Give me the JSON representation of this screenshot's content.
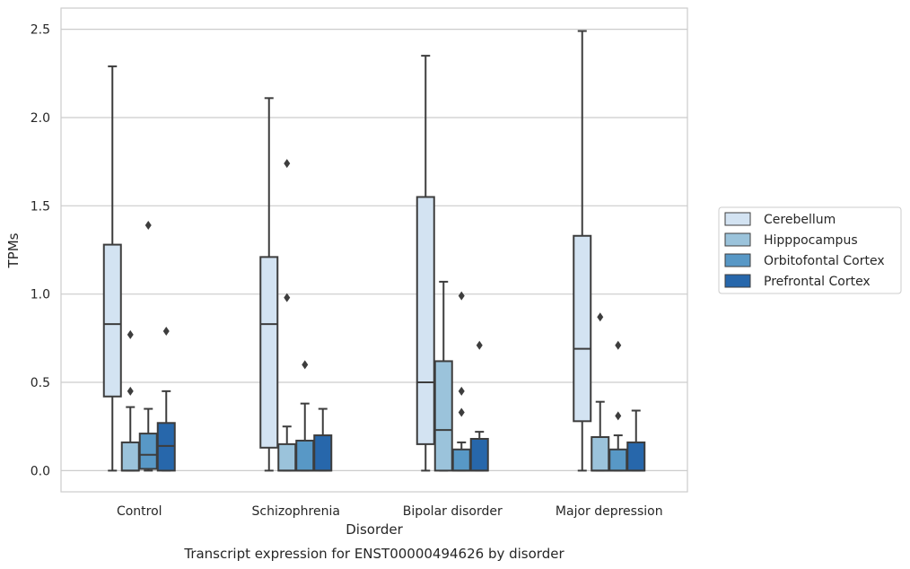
{
  "chart_data": {
    "type": "box",
    "caption": "Transcript expression for ENST00000494626 by disorder",
    "xlabel": "Disorder",
    "ylabel": "TPMs",
    "ylim": [
      -0.12,
      2.62
    ],
    "yticks": [
      0.0,
      0.5,
      1.0,
      1.5,
      2.0,
      2.5
    ],
    "ytick_labels": [
      "0.0",
      "0.5",
      "1.0",
      "1.5",
      "2.0",
      "2.5"
    ],
    "grid": "horizontal",
    "legend_position": "right",
    "categories": [
      "Control",
      "Schizophrenia",
      "Bipolar disorder",
      "Major depression"
    ],
    "series": [
      {
        "name": "Cerebellum",
        "color": "#d3e3f2",
        "boxes": [
          {
            "whisker_low": 0.0,
            "q1": 0.42,
            "median": 0.83,
            "q3": 1.28,
            "whisker_high": 2.29,
            "outliers": []
          },
          {
            "whisker_low": 0.0,
            "q1": 0.13,
            "median": 0.83,
            "q3": 1.21,
            "whisker_high": 2.11,
            "outliers": []
          },
          {
            "whisker_low": 0.0,
            "q1": 0.15,
            "median": 0.5,
            "q3": 1.55,
            "whisker_high": 2.35,
            "outliers": []
          },
          {
            "whisker_low": 0.0,
            "q1": 0.28,
            "median": 0.69,
            "q3": 1.33,
            "whisker_high": 2.49,
            "outliers": []
          }
        ]
      },
      {
        "name": "Hipppocampus",
        "color": "#9bc3db",
        "boxes": [
          {
            "whisker_low": 0.0,
            "q1": 0.0,
            "median": 0.0,
            "q3": 0.16,
            "whisker_high": 0.36,
            "outliers": [
              0.45,
              0.77
            ]
          },
          {
            "whisker_low": 0.0,
            "q1": 0.0,
            "median": 0.0,
            "q3": 0.15,
            "whisker_high": 0.25,
            "outliers": [
              0.98,
              1.74
            ]
          },
          {
            "whisker_low": 0.0,
            "q1": 0.0,
            "median": 0.23,
            "q3": 0.62,
            "whisker_high": 1.07,
            "outliers": []
          },
          {
            "whisker_low": 0.0,
            "q1": 0.0,
            "median": 0.0,
            "q3": 0.19,
            "whisker_high": 0.39,
            "outliers": [
              0.87
            ]
          }
        ]
      },
      {
        "name": "Orbitofontal Cortex",
        "color": "#5898c6",
        "boxes": [
          {
            "whisker_low": 0.0,
            "q1": 0.01,
            "median": 0.09,
            "q3": 0.21,
            "whisker_high": 0.35,
            "outliers": [
              1.39
            ]
          },
          {
            "whisker_low": 0.0,
            "q1": 0.0,
            "median": 0.0,
            "q3": 0.17,
            "whisker_high": 0.38,
            "outliers": [
              0.6
            ]
          },
          {
            "whisker_low": 0.0,
            "q1": 0.0,
            "median": 0.0,
            "q3": 0.12,
            "whisker_high": 0.16,
            "outliers": [
              0.33,
              0.45,
              0.99
            ]
          },
          {
            "whisker_low": 0.0,
            "q1": 0.0,
            "median": 0.0,
            "q3": 0.12,
            "whisker_high": 0.2,
            "outliers": [
              0.31,
              0.71
            ]
          }
        ]
      },
      {
        "name": "Prefrontal Cortex",
        "color": "#2767ab",
        "boxes": [
          {
            "whisker_low": 0.0,
            "q1": 0.0,
            "median": 0.14,
            "q3": 0.27,
            "whisker_high": 0.45,
            "outliers": [
              0.79
            ]
          },
          {
            "whisker_low": 0.0,
            "q1": 0.0,
            "median": 0.0,
            "q3": 0.2,
            "whisker_high": 0.35,
            "outliers": []
          },
          {
            "whisker_low": 0.0,
            "q1": 0.0,
            "median": 0.0,
            "q3": 0.18,
            "whisker_high": 0.22,
            "outliers": [
              0.71
            ]
          },
          {
            "whisker_low": 0.0,
            "q1": 0.0,
            "median": 0.0,
            "q3": 0.16,
            "whisker_high": 0.34,
            "outliers": []
          }
        ]
      }
    ]
  }
}
